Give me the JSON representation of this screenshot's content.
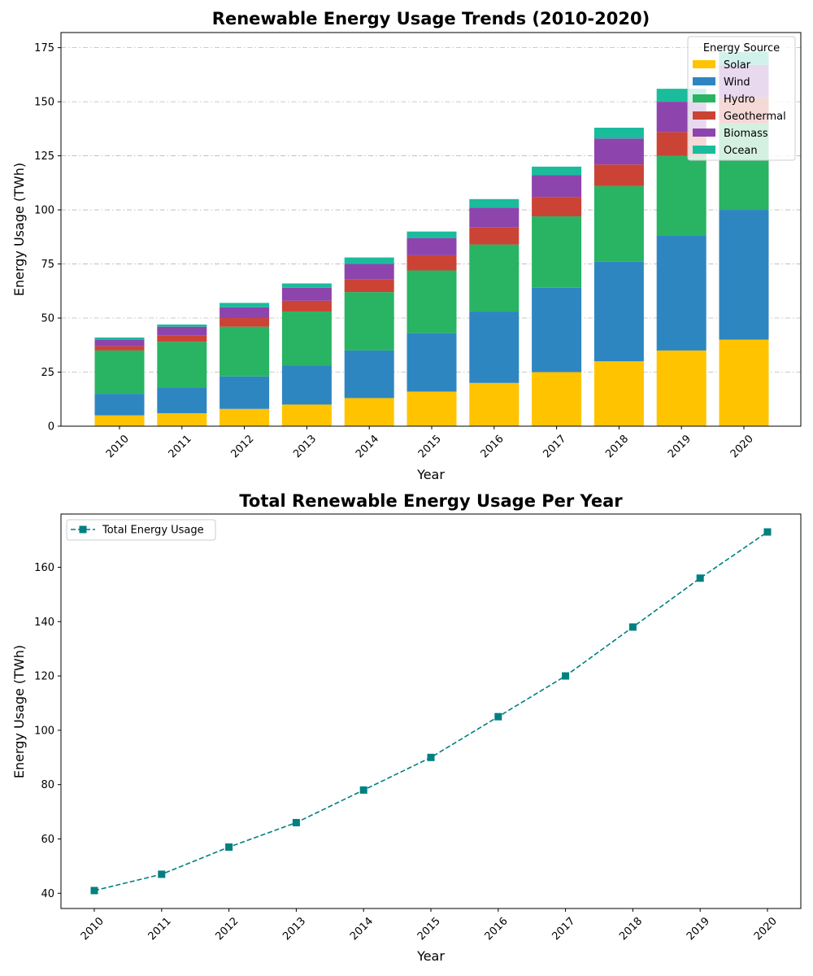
{
  "chart_data": [
    {
      "type": "bar",
      "stacked": true,
      "title": "Renewable Energy Usage Trends (2010-2020)",
      "xlabel": "Year",
      "ylabel": "Energy Usage (TWh)",
      "categories": [
        "2010",
        "2011",
        "2012",
        "2013",
        "2014",
        "2015",
        "2016",
        "2017",
        "2018",
        "2019",
        "2020"
      ],
      "ylim": [
        0,
        182
      ],
      "yticks": [
        0,
        25,
        50,
        75,
        100,
        125,
        150,
        175
      ],
      "grid": "y dash-dot",
      "legend": {
        "title": "Energy Source",
        "placement": "top-right"
      },
      "series": [
        {
          "name": "Solar",
          "color": "#ffc300",
          "values": [
            5,
            6,
            8,
            10,
            13,
            16,
            20,
            25,
            30,
            35,
            40
          ]
        },
        {
          "name": "Wind",
          "color": "#2e86c1",
          "values": [
            10,
            12,
            15,
            18,
            22,
            27,
            33,
            39,
            46,
            53,
            60
          ]
        },
        {
          "name": "Hydro",
          "color": "#28b463",
          "values": [
            20,
            21,
            23,
            25,
            27,
            29,
            31,
            33,
            35,
            37,
            40
          ]
        },
        {
          "name": "Geothermal",
          "color": "#cb4335",
          "values": [
            2,
            3,
            4,
            5,
            6,
            7,
            8,
            9,
            10,
            11,
            12
          ]
        },
        {
          "name": "Biomass",
          "color": "#8e44ad",
          "values": [
            3,
            4,
            5,
            6,
            7,
            8,
            9,
            10,
            12,
            14,
            15
          ]
        },
        {
          "name": "Ocean",
          "color": "#1abc9c",
          "values": [
            1,
            1,
            2,
            2,
            3,
            3,
            4,
            4,
            5,
            6,
            6
          ]
        }
      ]
    },
    {
      "type": "line",
      "title": "Total Renewable Energy Usage Per Year",
      "xlabel": "Year",
      "ylabel": "Energy Usage (TWh)",
      "categories": [
        "2010",
        "2011",
        "2012",
        "2013",
        "2014",
        "2015",
        "2016",
        "2017",
        "2018",
        "2019",
        "2020"
      ],
      "ylim": [
        34.4,
        179.6
      ],
      "yticks": [
        40,
        60,
        80,
        100,
        120,
        140,
        160
      ],
      "grid": "off",
      "legend": {
        "placement": "top-left"
      },
      "series": [
        {
          "name": "Total Energy Usage",
          "color": "#008080",
          "line_style": "dashed",
          "marker": "square",
          "values": [
            41,
            47,
            57,
            66,
            78,
            90,
            105,
            120,
            138,
            156,
            173
          ]
        }
      ]
    }
  ]
}
